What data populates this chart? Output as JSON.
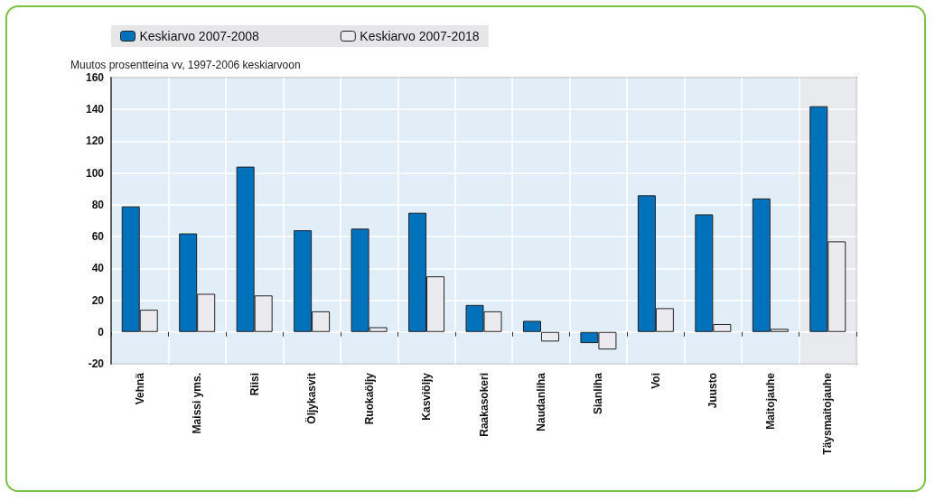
{
  "chart_data": {
    "type": "bar",
    "ylabel": "Muutos prosentteina vv, 1997-2006 keskiarvoon",
    "categories": [
      "Vehnä",
      "Maissi yms.",
      "Riisi",
      "Öljykasvit",
      "Ruokaöljy",
      "Kasviöljy",
      "Raakasokeri",
      "Naudanliha",
      "Sianliha",
      "Voi",
      "Juusto",
      "Maitojauhe",
      "Täysmaitojauhe"
    ],
    "series": [
      {
        "name": "Keskiarvo 2007-2008",
        "color": "#0072bc",
        "values": [
          79,
          62,
          104,
          64,
          65,
          75,
          17,
          7,
          -7,
          86,
          74,
          84,
          142
        ]
      },
      {
        "name": "Keskiarvo 2007-2018",
        "color": "#ebebef",
        "values": [
          14,
          24,
          23,
          13,
          3,
          35,
          13,
          -6,
          -11,
          15,
          5,
          2,
          57
        ]
      }
    ],
    "ylim": [
      -20,
      160
    ],
    "yticks": [
      -20,
      0,
      20,
      40,
      60,
      80,
      100,
      120,
      140,
      160
    ],
    "grid": true,
    "legend": "top"
  }
}
